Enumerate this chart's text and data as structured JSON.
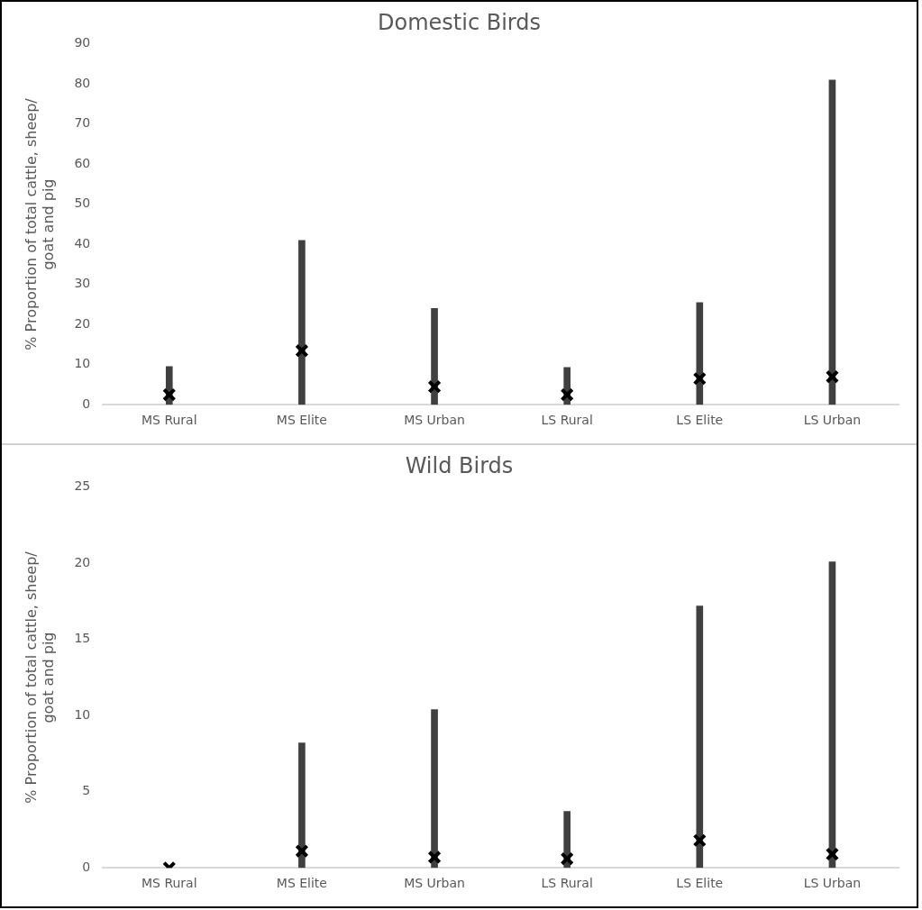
{
  "chart_data": [
    {
      "type": "bar",
      "title": "Domestic Birds",
      "ylabel": "% Proportion of total cattle, sheep/\ngoat and pig",
      "categories": [
        "MS Rural",
        "MS Elite",
        "MS Urban",
        "LS Rural",
        "LS Elite",
        "LS Urban"
      ],
      "ylim": [
        0,
        90
      ],
      "yticks": [
        0,
        10,
        20,
        30,
        40,
        50,
        60,
        70,
        80,
        90
      ],
      "grid": false,
      "legend": false,
      "series": [
        {
          "color": "#404040",
          "values": [
            9.5,
            41,
            24,
            9.3,
            25.5,
            81
          ]
        },
        {
          "type": "scatter",
          "color": "#000000",
          "marker": "cross",
          "values": [
            2.5,
            13.5,
            4.5,
            2.5,
            6.5,
            7
          ]
        }
      ]
    },
    {
      "type": "bar",
      "title": "Wild Birds",
      "ylabel": "% Proportion of total cattle, sheep/\ngoat and pig",
      "categories": [
        "MS Rural",
        "MS Elite",
        "MS Urban",
        "LS Rural",
        "LS Elite",
        "LS Urban"
      ],
      "ylim": [
        0,
        25
      ],
      "yticks": [
        0,
        5,
        10,
        15,
        20,
        25
      ],
      "grid": false,
      "legend": false,
      "series": [
        {
          "color": "#404040",
          "values": [
            0,
            8.2,
            10.4,
            3.7,
            17.2,
            20.1
          ]
        },
        {
          "type": "scatter",
          "color": "#000000",
          "marker": "cross",
          "values": [
            0,
            1.1,
            0.7,
            0.6,
            1.8,
            0.9
          ]
        }
      ]
    }
  ]
}
